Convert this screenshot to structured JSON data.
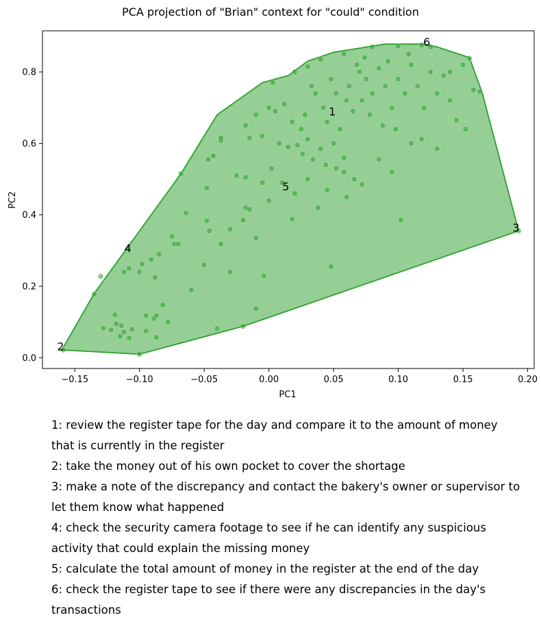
{
  "chart_data": {
    "type": "scatter",
    "title": "PCA projection of \"Brian\" context for \"could\" condition",
    "xlabel": "PC1",
    "ylabel": "PC2",
    "xlim": [
      -0.175,
      0.205
    ],
    "ylim": [
      -0.03,
      0.915
    ],
    "xticks": [
      -0.15,
      -0.1,
      -0.05,
      0.0,
      0.05,
      0.1,
      0.15,
      0.2
    ],
    "xtick_labels": [
      "−0.15",
      "−0.10",
      "−0.05",
      "0.00",
      "0.05",
      "0.10",
      "0.15",
      "0.20"
    ],
    "yticks": [
      0.0,
      0.2,
      0.4,
      0.6,
      0.8
    ],
    "ytick_labels": [
      "0.0",
      "0.2",
      "0.4",
      "0.6",
      "0.8"
    ],
    "grid": false,
    "colors": {
      "points": "#2ca02c",
      "hull_fill": "#2ca02c",
      "hull_edge": "#2ca02c"
    },
    "hull": [
      [
        -0.16,
        0.022
      ],
      [
        -0.1,
        0.01
      ],
      [
        -0.02,
        0.088
      ],
      [
        0.193,
        0.355
      ],
      [
        0.165,
        0.74
      ],
      [
        0.155,
        0.84
      ],
      [
        0.13,
        0.87
      ],
      [
        0.12,
        0.878
      ],
      [
        0.09,
        0.878
      ],
      [
        0.05,
        0.855
      ],
      [
        0.03,
        0.83
      ],
      [
        0.015,
        0.79
      ],
      [
        -0.005,
        0.77
      ],
      [
        -0.04,
        0.68
      ],
      [
        -0.068,
        0.515
      ],
      [
        -0.135,
        0.18
      ]
    ],
    "labeled_points": [
      {
        "label": "1",
        "x": 0.049,
        "y": 0.688
      },
      {
        "label": "2",
        "x": -0.161,
        "y": 0.03
      },
      {
        "label": "3",
        "x": 0.191,
        "y": 0.363
      },
      {
        "label": "4",
        "x": -0.109,
        "y": 0.305
      },
      {
        "label": "5",
        "x": 0.013,
        "y": 0.478
      },
      {
        "label": "6",
        "x": 0.122,
        "y": 0.882
      }
    ],
    "points": [
      [
        -0.159,
        0.022
      ],
      [
        -0.1,
        0.01
      ],
      [
        -0.02,
        0.088
      ],
      [
        0.193,
        0.355
      ],
      [
        -0.135,
        0.178
      ],
      [
        -0.068,
        0.515
      ],
      [
        -0.04,
        0.082
      ],
      [
        -0.01,
        0.138
      ],
      [
        -0.004,
        0.23
      ],
      [
        0.048,
        0.255
      ],
      [
        0.102,
        0.385
      ],
      [
        -0.128,
        0.083
      ],
      [
        -0.122,
        0.078
      ],
      [
        -0.118,
        0.095
      ],
      [
        -0.115,
        0.06
      ],
      [
        -0.112,
        0.072
      ],
      [
        -0.108,
        0.055
      ],
      [
        -0.106,
        0.08
      ],
      [
        -0.119,
        0.12
      ],
      [
        -0.114,
        0.09
      ],
      [
        -0.095,
        0.118
      ],
      [
        -0.089,
        0.11
      ],
      [
        -0.087,
        0.118
      ],
      [
        -0.087,
        0.057
      ],
      [
        -0.082,
        0.148
      ],
      [
        -0.13,
        0.228
      ],
      [
        -0.112,
        0.24
      ],
      [
        -0.108,
        0.25
      ],
      [
        -0.1,
        0.24
      ],
      [
        -0.098,
        0.262
      ],
      [
        -0.091,
        0.275
      ],
      [
        -0.088,
        0.225
      ],
      [
        -0.085,
        0.29
      ],
      [
        -0.075,
        0.34
      ],
      [
        -0.073,
        0.318
      ],
      [
        -0.07,
        0.318
      ],
      [
        -0.064,
        0.405
      ],
      [
        -0.048,
        0.475
      ],
      [
        -0.048,
        0.383
      ],
      [
        -0.046,
        0.355
      ],
      [
        -0.037,
        0.318
      ],
      [
        -0.03,
        0.36
      ],
      [
        -0.02,
        0.385
      ],
      [
        -0.018,
        0.42
      ],
      [
        -0.015,
        0.415
      ],
      [
        -0.01,
        0.335
      ],
      [
        -0.025,
        0.51
      ],
      [
        -0.018,
        0.505
      ],
      [
        -0.005,
        0.49
      ],
      [
        0.002,
        0.53
      ],
      [
        0.01,
        0.49
      ],
      [
        0.018,
        0.388
      ],
      [
        0.038,
        0.42
      ],
      [
        -0.047,
        0.555
      ],
      [
        -0.043,
        0.565
      ],
      [
        -0.037,
        0.608
      ],
      [
        -0.037,
        0.616
      ],
      [
        -0.015,
        0.615
      ],
      [
        -0.005,
        0.62
      ],
      [
        0.008,
        0.6
      ],
      [
        0.022,
        0.595
      ],
      [
        0.03,
        0.612
      ],
      [
        0.04,
        0.585
      ],
      [
        0.05,
        0.6
      ],
      [
        0.058,
        0.56
      ],
      [
        0.066,
        0.5
      ],
      [
        0.072,
        0.485
      ],
      [
        0.085,
        0.555
      ],
      [
        0.095,
        0.52
      ],
      [
        0.11,
        0.6
      ],
      [
        0.118,
        0.612
      ],
      [
        0.13,
        0.585
      ],
      [
        0.145,
        0.665
      ],
      [
        0.152,
        0.64
      ],
      [
        0.163,
        0.745
      ],
      [
        0.158,
        0.75
      ],
      [
        0.155,
        0.838
      ],
      [
        0.15,
        0.82
      ],
      [
        0.14,
        0.8
      ],
      [
        0.125,
        0.87
      ],
      [
        0.118,
        0.875
      ],
      [
        0.108,
        0.85
      ],
      [
        -0.018,
        0.65
      ],
      [
        -0.01,
        0.68
      ],
      [
        0.0,
        0.7
      ],
      [
        0.005,
        0.69
      ],
      [
        0.012,
        0.71
      ],
      [
        0.018,
        0.66
      ],
      [
        0.025,
        0.64
      ],
      [
        0.028,
        0.68
      ],
      [
        0.003,
        0.77
      ],
      [
        0.02,
        0.8
      ],
      [
        0.03,
        0.815
      ],
      [
        0.04,
        0.835
      ],
      [
        0.058,
        0.85
      ],
      [
        0.08,
        0.87
      ],
      [
        0.1,
        0.872
      ],
      [
        0.045,
        0.66
      ],
      [
        0.055,
        0.64
      ],
      [
        0.06,
        0.72
      ],
      [
        0.062,
        0.76
      ],
      [
        0.07,
        0.8
      ],
      [
        0.075,
        0.78
      ],
      [
        0.08,
        0.74
      ],
      [
        0.085,
        0.81
      ],
      [
        0.09,
        0.76
      ],
      [
        0.095,
        0.7
      ],
      [
        0.1,
        0.78
      ],
      [
        0.105,
        0.74
      ],
      [
        0.11,
        0.82
      ],
      [
        0.115,
        0.76
      ],
      [
        0.12,
        0.7
      ],
      [
        0.125,
        0.8
      ],
      [
        0.13,
        0.74
      ],
      [
        0.135,
        0.79
      ],
      [
        0.14,
        0.72
      ],
      [
        0.048,
        0.78
      ],
      [
        0.052,
        0.74
      ],
      [
        0.065,
        0.69
      ],
      [
        0.072,
        0.72
      ],
      [
        0.078,
        0.68
      ],
      [
        0.088,
        0.65
      ],
      [
        0.092,
        0.83
      ],
      [
        0.098,
        0.64
      ],
      [
        0.068,
        0.82
      ],
      [
        0.074,
        0.84
      ],
      [
        0.036,
        0.74
      ],
      [
        0.033,
        0.76
      ],
      [
        0.042,
        0.7
      ],
      [
        0.015,
        0.59
      ],
      [
        0.026,
        0.57
      ],
      [
        0.034,
        0.555
      ],
      [
        0.044,
        0.54
      ],
      [
        0.052,
        0.53
      ],
      [
        0.058,
        0.52
      ],
      [
        -0.095,
        0.075
      ],
      [
        -0.078,
        0.1
      ],
      [
        -0.06,
        0.19
      ],
      [
        -0.05,
        0.26
      ],
      [
        -0.03,
        0.24
      ],
      [
        0.0,
        0.44
      ],
      [
        0.02,
        0.46
      ],
      [
        0.03,
        0.5
      ],
      [
        0.045,
        0.47
      ],
      [
        0.06,
        0.45
      ]
    ],
    "notes": [
      "1: review the register tape for the day and compare it to the amount of money that is currently in the register",
      "2: take the money out of his own pocket to cover the shortage",
      "3: make a note of the discrepancy and contact the bakery's owner or supervisor to let them know what happened",
      "4: check the security camera footage to see if he can identify any suspicious activity that could explain the missing money",
      "5: calculate the total amount of money in the register at the end of the day",
      "6: check the register tape to see if there were any discrepancies in the day's transactions"
    ]
  }
}
